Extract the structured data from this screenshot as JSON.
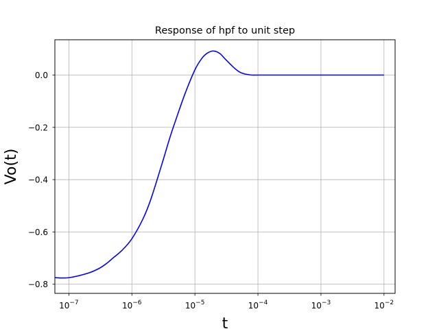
{
  "chart_data": {
    "type": "line",
    "title": "Response of hpf to unit step",
    "xlabel": "t",
    "ylabel": "Vo(t)",
    "x_scale": "log",
    "xlim": [
      6e-08,
      0.015
    ],
    "ylim": [
      -0.835,
      0.135
    ],
    "grid": true,
    "xticks": [
      1e-07,
      1e-06,
      1e-05,
      0.0001,
      0.001,
      0.01
    ],
    "xtick_labels": [
      {
        "base": "10",
        "exp": "−7"
      },
      {
        "base": "10",
        "exp": "−6"
      },
      {
        "base": "10",
        "exp": "−5"
      },
      {
        "base": "10",
        "exp": "−4"
      },
      {
        "base": "10",
        "exp": "−3"
      },
      {
        "base": "10",
        "exp": "−2"
      }
    ],
    "yticks": [
      -0.8,
      -0.6,
      -0.4,
      -0.2,
      0.0
    ],
    "ytick_labels": [
      "−0.8",
      "−0.6",
      "−0.4",
      "−0.2",
      "0.0"
    ],
    "series": [
      {
        "color": "#0000ff",
        "x": [
          6e-08,
          1e-07,
          2e-07,
          3e-07,
          4e-07,
          5e-07,
          7e-07,
          1e-06,
          1.5e-06,
          2e-06,
          3e-06,
          4e-06,
          5e-06,
          7e-06,
          1e-05,
          1.3e-05,
          1.6e-05,
          2e-05,
          2.5e-05,
          3e-05,
          4e-05,
          5e-05,
          6e-05,
          7e-05,
          8e-05,
          0.0001,
          0.0002,
          0.001,
          0.01
        ],
        "y": [
          -0.775,
          -0.775,
          -0.758,
          -0.74,
          -0.72,
          -0.7,
          -0.67,
          -0.626,
          -0.55,
          -0.475,
          -0.34,
          -0.24,
          -0.17,
          -0.07,
          0.02,
          0.065,
          0.085,
          0.092,
          0.082,
          0.062,
          0.032,
          0.013,
          0.005,
          0.002,
          0.0,
          0.0,
          0.0,
          0.0,
          0.0
        ]
      }
    ]
  }
}
